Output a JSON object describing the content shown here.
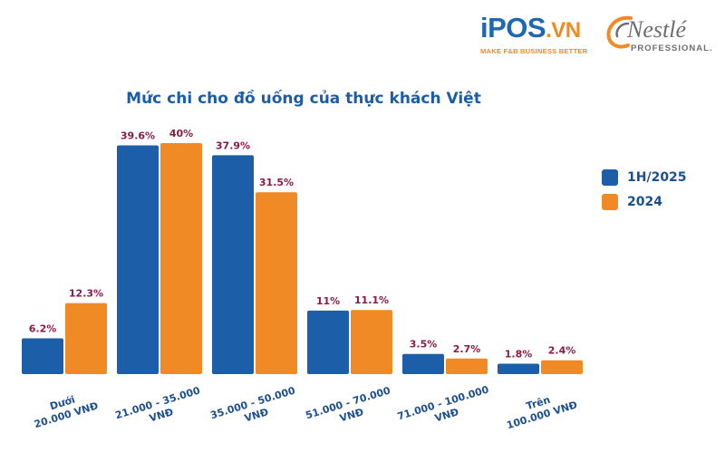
{
  "branding": {
    "ipos_main": "iPOS",
    "ipos_domain": ".VN",
    "ipos_tagline": "MAKE F&B BUSINESS BETTER",
    "nestle_name": "Nestlé",
    "nestle_sub": "PROFESSIONAL."
  },
  "colors": {
    "series_1": "#1c5fa8",
    "series_2": "#f08a24",
    "value_label": "#8b1a45",
    "category_label": "#1b4f8f"
  },
  "chart_data": {
    "type": "bar",
    "title": "Mức chi cho đồ uống của thực khách Việt",
    "xlabel": "",
    "ylabel": "",
    "ylim": [
      0,
      45
    ],
    "grid": false,
    "legend_position": "right",
    "categories": [
      "Dưới 20.000 VNĐ",
      "21.000 - 35.000 VNĐ",
      "35.000 - 50.000 VNĐ",
      "51.000 - 70.000 VNĐ",
      "71.000 - 100.000 VNĐ",
      "Trên 100.000 VNĐ"
    ],
    "category_lines": [
      [
        "Dưới",
        "20.000 VNĐ"
      ],
      [
        "21.000 - 35.000",
        "VNĐ"
      ],
      [
        "35.000 - 50.000",
        "VNĐ"
      ],
      [
        "51.000 - 70.000",
        "VNĐ"
      ],
      [
        "71.000 - 100.000",
        "VNĐ"
      ],
      [
        "Trên",
        "100.000 VNĐ"
      ]
    ],
    "series": [
      {
        "name": "1H/2025",
        "values": [
          6.2,
          39.6,
          37.9,
          11,
          3.5,
          1.8
        ],
        "labels": [
          "6.2%",
          "39.6%",
          "37.9%",
          "11%",
          "3.5%",
          "1.8%"
        ]
      },
      {
        "name": "2024",
        "values": [
          12.3,
          40,
          31.5,
          11.1,
          2.7,
          2.4
        ],
        "labels": [
          "12.3%",
          "40%",
          "31.5%",
          "11.1%",
          "2.7%",
          "2.4%"
        ]
      }
    ]
  }
}
